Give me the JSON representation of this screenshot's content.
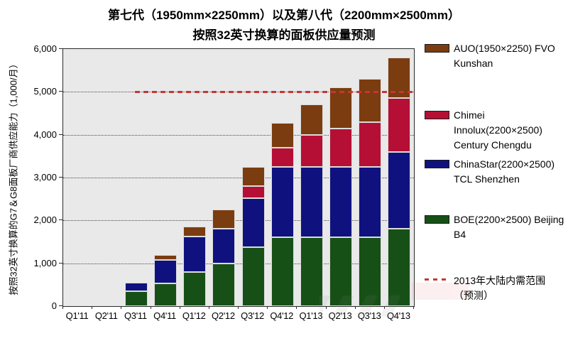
{
  "title": {
    "line1": "第七代（1950mm×2250mm）以及第八代（2200mm×2500mm）",
    "line2": "按照32英寸换算的面板供应量预测"
  },
  "chart_data": {
    "type": "bar",
    "stacked": true,
    "categories": [
      "Q1'11",
      "Q2'11",
      "Q3'11",
      "Q4'11",
      "Q1'12",
      "Q2'12",
      "Q3'12",
      "Q4'12",
      "Q1'13",
      "Q2'13",
      "Q3'13",
      "Q4'13"
    ],
    "series": [
      {
        "name": "BOE(2200×2500) Beijing B4",
        "color": "#175017",
        "values": [
          0,
          0,
          350,
          525,
          800,
          1000,
          1375,
          1600,
          1600,
          1600,
          1600,
          1800
        ]
      },
      {
        "name": "ChinaStar(2200×2500) TCL Shenzhen",
        "color": "#0f127e",
        "values": [
          0,
          0,
          200,
          550,
          825,
          800,
          1150,
          1650,
          1650,
          1650,
          1650,
          1800
        ]
      },
      {
        "name": "Chimei Innolux(2200×2500) Century Chengdu",
        "color": "#b50f35",
        "values": [
          0,
          0,
          0,
          0,
          0,
          0,
          275,
          450,
          750,
          900,
          1050,
          1250
        ]
      },
      {
        "name": "AUO(1950×2250) FVO Kunshan",
        "color": "#7b3c10",
        "values": [
          0,
          0,
          0,
          125,
          225,
          450,
          450,
          575,
          700,
          950,
          1000,
          950
        ]
      }
    ],
    "ylabel": "按照32英寸换算的G7＆G8面板厂商供应能力（1,000/月）",
    "xlabel": "",
    "ylim": [
      0,
      6000
    ],
    "ytick_interval": 1000,
    "ytick_labels": [
      "0",
      "1,000",
      "2,000",
      "3,000",
      "4,000",
      "5,000",
      "6,000"
    ],
    "grid": "horizontal-dotted",
    "plot_background": "#e9e9e9",
    "legend_position": "right",
    "reference_line": {
      "value": 5000,
      "label": "2013年大陆内需范围（预测）",
      "color": "#c43636",
      "style": "dashed"
    }
  },
  "legend": {
    "items": [
      {
        "label": "AUO(1950×2250) FVO Kunshan",
        "color": "#7b3c10",
        "marker": "box"
      },
      {
        "label": "Chimei Innolux(2200×2500) Century Chengdu",
        "color": "#b50f35",
        "marker": "box"
      },
      {
        "label": "ChinaStar(2200×2500) TCL Shenzhen",
        "color": "#0f127e",
        "marker": "box"
      },
      {
        "label": "BOE(2200×2500) Beijing B4",
        "color": "#175017",
        "marker": "box"
      },
      {
        "label": "2013年大陆内需范围（预测）",
        "color": "#c43636",
        "marker": "dashed-line"
      }
    ]
  }
}
